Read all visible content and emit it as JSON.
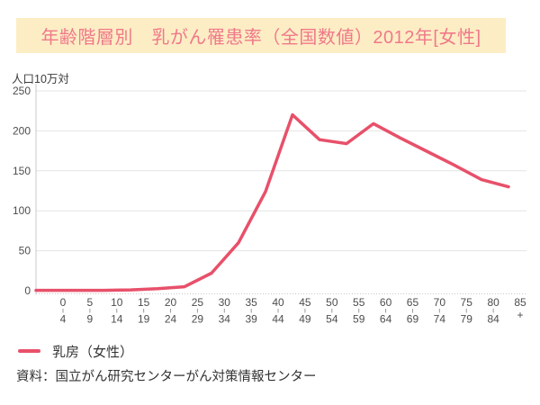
{
  "title": "年齢階層別　乳がん罹患率（全国数値）2012年[女性]",
  "legend": {
    "label": "乳房（女性）"
  },
  "source": "資料：国立がん研究センターがん対策情報センター",
  "colors": {
    "line": "#e8506a",
    "title_text": "#f0798a",
    "title_bg": "#fcedc4",
    "grid": "#e4e4e4",
    "axis": "#c9c9c9",
    "tick_text": "#4d4d4d"
  },
  "chart_data": {
    "type": "line",
    "title": "年齢階層別　乳がん罹患率（全国数値）2012年[女性]",
    "unit_label": "人口10万対",
    "xlabel": "",
    "ylabel": "人口10万対",
    "categories": [
      "0-4",
      "5-9",
      "10-14",
      "15-19",
      "20-24",
      "25-29",
      "30-34",
      "35-39",
      "40-44",
      "45-49",
      "50-54",
      "55-59",
      "60-64",
      "65-69",
      "70-74",
      "75-79",
      "80-84",
      "85+"
    ],
    "series": [
      {
        "name": "乳房（女性）",
        "values": [
          0.5,
          0.5,
          0.5,
          1,
          2.5,
          5,
          22,
          60,
          124,
          220,
          189,
          184,
          209,
          191,
          174,
          157,
          139,
          130
        ]
      }
    ],
    "yticks": [
      0,
      50,
      100,
      150,
      200,
      250
    ],
    "ylim": [
      0,
      250
    ],
    "grid": true,
    "legend_position": "bottom-left"
  }
}
